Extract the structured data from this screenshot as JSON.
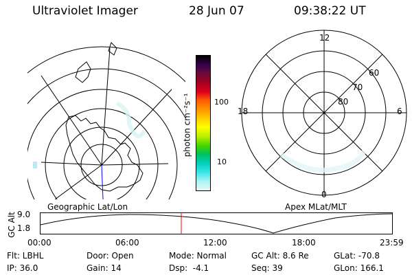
{
  "header": {
    "instrument": "Ultraviolet Imager",
    "date": "28 Jun 07",
    "time": "09:38:22 UT"
  },
  "maps": {
    "left_label": "Geographic Lat/Lon",
    "right_label": "Apex MLat/MLT",
    "right_mlt_labels": {
      "top": "12",
      "left": "18",
      "right": "6",
      "bottom": "0"
    },
    "right_lat_labels": [
      "60",
      "70",
      "80"
    ]
  },
  "colorbar": {
    "unit_label": "photon cm⁻²s⁻¹",
    "ticks": [
      "100",
      "10"
    ],
    "colors": [
      "#000000",
      "#3a0050",
      "#6a0a3a",
      "#a30020",
      "#e0001a",
      "#ff5a00",
      "#ff9500",
      "#ffd000",
      "#ffff00",
      "#b8f000",
      "#40d400",
      "#00c060",
      "#00d0c0",
      "#40e8e8",
      "#a8f2f2",
      "#e8f8f8"
    ]
  },
  "timeline": {
    "y_title": "GC Alt",
    "y_ticks": [
      "9.0",
      "1.8"
    ],
    "x_ticks": [
      "00:00",
      "06:00",
      "12:00",
      "18:00",
      "23:59"
    ],
    "marker_color": "#ff0000"
  },
  "footer": {
    "row1": [
      "Flt: LBHL",
      "Door: Open",
      "Mode: Normal",
      "GC Alt: 8.6 Re",
      "GLat: -70.8"
    ],
    "row2": [
      "IP: 36.0",
      "Gain: 14",
      "Dsp:  -4.1",
      "Seq: 39",
      "GLon: 166.1"
    ]
  }
}
